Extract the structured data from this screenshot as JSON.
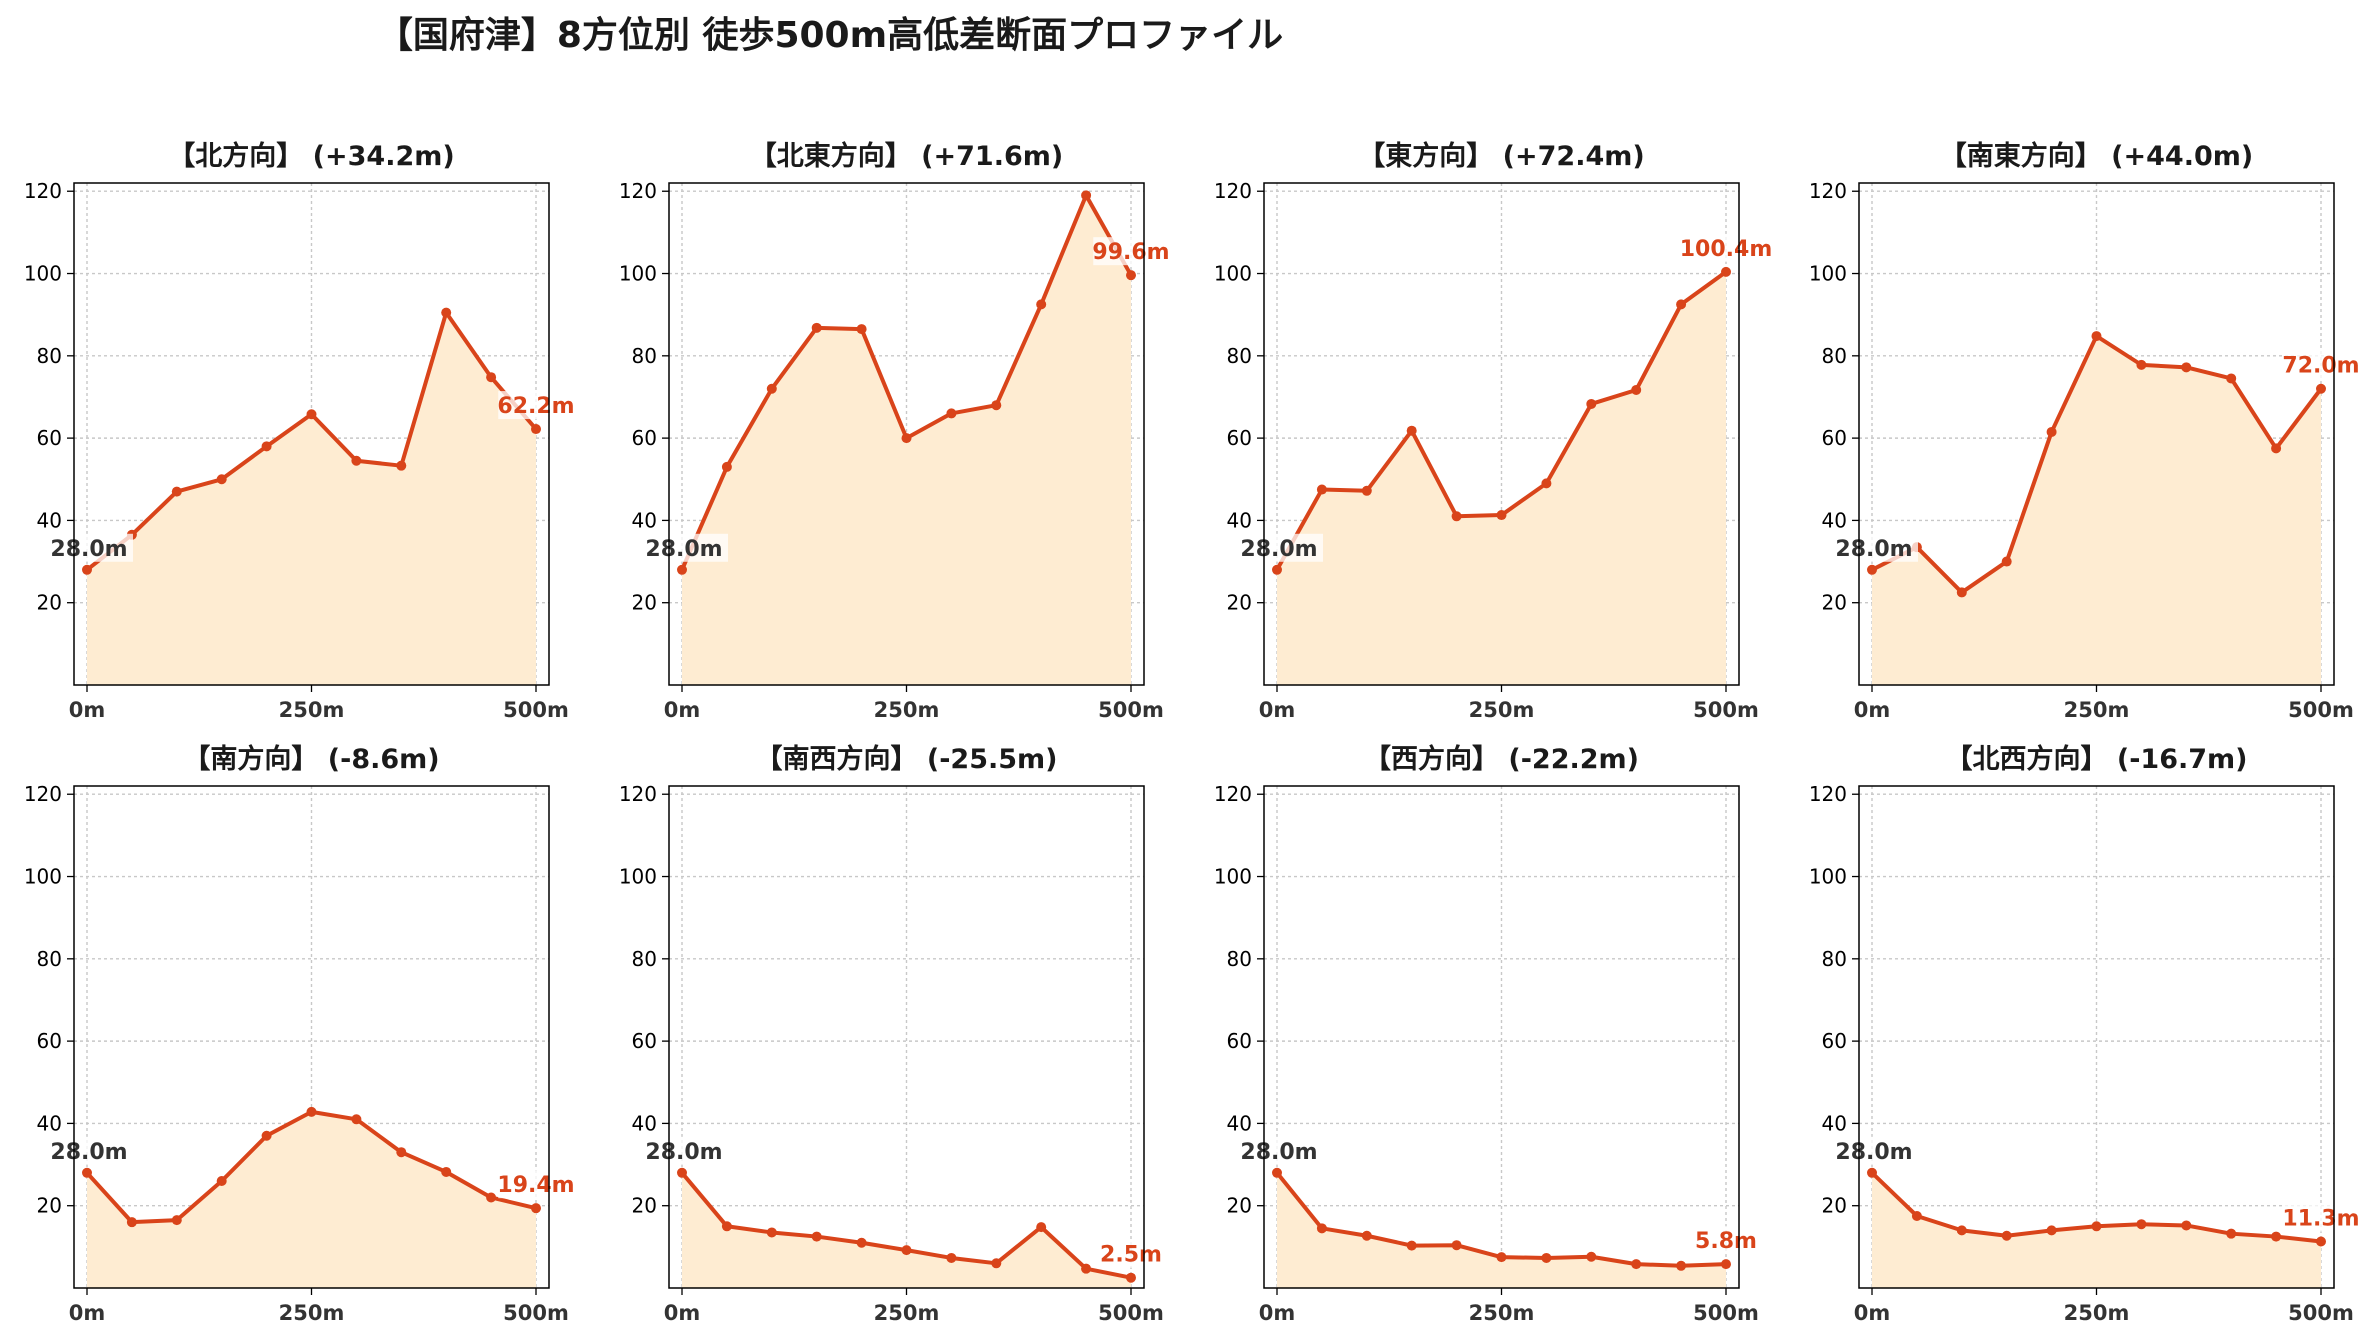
{
  "figure": {
    "title": "【国府津】8方位別 徒歩500m高低差断面プロファイル"
  },
  "style": {
    "line_color": "#d9441a",
    "fill_color": "#feecd2",
    "start_label_color": "#333333",
    "end_label_color": "#d9441a",
    "grid_color": "#c8c8c8"
  },
  "chart_data": [
    {
      "type": "area",
      "title": "【北方向】 (+34.2m)",
      "x": [
        0,
        50,
        100,
        150,
        200,
        250,
        300,
        350,
        400,
        450,
        500
      ],
      "values": [
        28.0,
        36.5,
        47.0,
        50.0,
        58.0,
        65.8,
        54.5,
        53.3,
        90.5,
        74.8,
        62.2
      ],
      "x_ticks": [
        "0m",
        "250m",
        "500m"
      ],
      "y_ticks": [
        "20",
        "40",
        "60",
        "80",
        "100",
        "120"
      ],
      "ylim": [
        0,
        122
      ],
      "start_label": "28.0m",
      "end_label": "62.2m",
      "grid": true
    },
    {
      "type": "area",
      "title": "【北東方向】 (+71.6m)",
      "x": [
        0,
        50,
        100,
        150,
        200,
        250,
        300,
        350,
        400,
        450,
        500
      ],
      "values": [
        28.0,
        53.0,
        72.0,
        86.8,
        86.5,
        60.0,
        66.0,
        68.0,
        92.5,
        119.0,
        99.6
      ],
      "x_ticks": [
        "0m",
        "250m",
        "500m"
      ],
      "y_ticks": [
        "20",
        "40",
        "60",
        "80",
        "100",
        "120"
      ],
      "ylim": [
        0,
        122
      ],
      "start_label": "28.0m",
      "end_label": "99.6m",
      "grid": true
    },
    {
      "type": "area",
      "title": "【東方向】 (+72.4m)",
      "x": [
        0,
        50,
        100,
        150,
        200,
        250,
        300,
        350,
        400,
        450,
        500
      ],
      "values": [
        28.0,
        47.5,
        47.2,
        61.8,
        41.0,
        41.3,
        49.0,
        68.3,
        71.7,
        92.5,
        100.4
      ],
      "x_ticks": [
        "0m",
        "250m",
        "500m"
      ],
      "y_ticks": [
        "20",
        "40",
        "60",
        "80",
        "100",
        "120"
      ],
      "ylim": [
        0,
        122
      ],
      "start_label": "28.0m",
      "end_label": "100.4m",
      "grid": true
    },
    {
      "type": "area",
      "title": "【南東方向】 (+44.0m)",
      "x": [
        0,
        50,
        100,
        150,
        200,
        250,
        300,
        350,
        400,
        450,
        500
      ],
      "values": [
        28.0,
        33.5,
        22.5,
        30.0,
        61.5,
        84.8,
        77.8,
        77.2,
        74.5,
        57.5,
        72.0
      ],
      "x_ticks": [
        "0m",
        "250m",
        "500m"
      ],
      "y_ticks": [
        "20",
        "40",
        "60",
        "80",
        "100",
        "120"
      ],
      "ylim": [
        0,
        122
      ],
      "start_label": "28.0m",
      "end_label": "72.0m",
      "grid": true
    },
    {
      "type": "area",
      "title": "【南方向】 (-8.6m)",
      "x": [
        0,
        50,
        100,
        150,
        200,
        250,
        300,
        350,
        400,
        450,
        500
      ],
      "values": [
        28.0,
        16.0,
        16.5,
        26.0,
        37.0,
        42.8,
        41.0,
        33.0,
        28.2,
        22.0,
        19.4
      ],
      "x_ticks": [
        "0m",
        "250m",
        "500m"
      ],
      "y_ticks": [
        "20",
        "40",
        "60",
        "80",
        "100",
        "120"
      ],
      "ylim": [
        0,
        122
      ],
      "start_label": "28.0m",
      "end_label": "19.4m",
      "grid": true
    },
    {
      "type": "area",
      "title": "【南西方向】 (-25.5m)",
      "x": [
        0,
        50,
        100,
        150,
        200,
        250,
        300,
        350,
        400,
        450,
        500
      ],
      "values": [
        28.0,
        15.0,
        13.5,
        12.5,
        11.0,
        9.2,
        7.3,
        6.0,
        14.8,
        4.7,
        2.5
      ],
      "x_ticks": [
        "0m",
        "250m",
        "500m"
      ],
      "y_ticks": [
        "20",
        "40",
        "60",
        "80",
        "100",
        "120"
      ],
      "ylim": [
        0,
        122
      ],
      "start_label": "28.0m",
      "end_label": "2.5m",
      "grid": true
    },
    {
      "type": "area",
      "title": "【西方向】 (-22.2m)",
      "x": [
        0,
        50,
        100,
        150,
        200,
        250,
        300,
        350,
        400,
        450,
        500
      ],
      "values": [
        28.0,
        14.5,
        12.7,
        10.3,
        10.4,
        7.5,
        7.3,
        7.6,
        5.8,
        5.4,
        5.8
      ],
      "x_ticks": [
        "0m",
        "250m",
        "500m"
      ],
      "y_ticks": [
        "20",
        "40",
        "60",
        "80",
        "100",
        "120"
      ],
      "ylim": [
        0,
        122
      ],
      "start_label": "28.0m",
      "end_label": "5.8m",
      "grid": true
    },
    {
      "type": "area",
      "title": "【北西方向】 (-16.7m)",
      "x": [
        0,
        50,
        100,
        150,
        200,
        250,
        300,
        350,
        400,
        450,
        500
      ],
      "values": [
        28.0,
        17.5,
        14.0,
        12.7,
        14.0,
        15.0,
        15.5,
        15.2,
        13.2,
        12.5,
        11.3
      ],
      "x_ticks": [
        "0m",
        "250m",
        "500m"
      ],
      "y_ticks": [
        "20",
        "40",
        "60",
        "80",
        "100",
        "120"
      ],
      "ylim": [
        0,
        122
      ],
      "start_label": "28.0m",
      "end_label": "11.3m",
      "grid": true
    }
  ]
}
